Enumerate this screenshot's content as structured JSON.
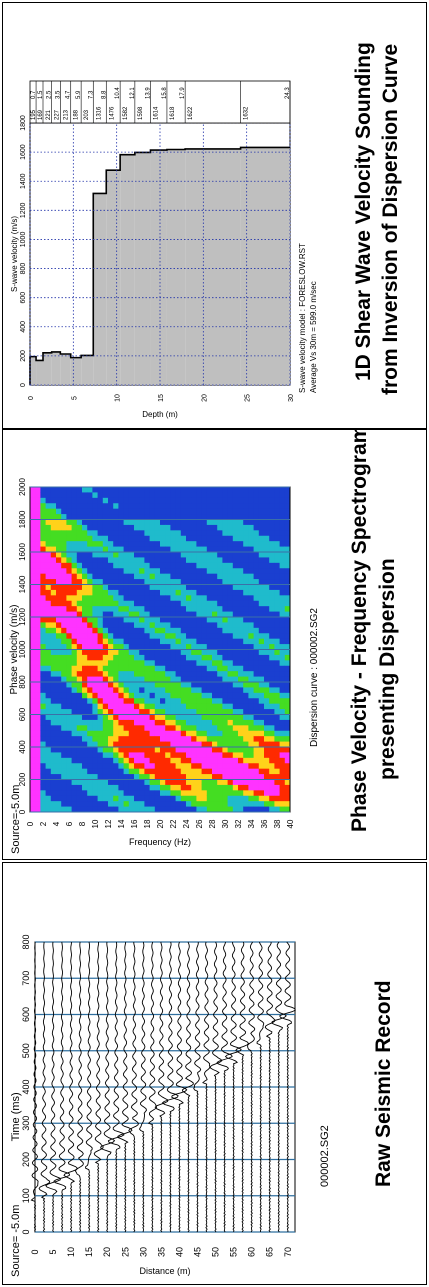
{
  "panel1": {
    "source_label": "Source= -5.0m",
    "file_label": "000002.SG2",
    "caption": "Raw Seismic Record"
  },
  "panel2": {
    "source_label": "Source=-5.0m",
    "file_label": "Dispersion curve : 000002.SG2",
    "caption_line1": "Phase Velocity - Frequency Spectrogram",
    "caption_line2": "presenting Dispersion"
  },
  "panel3": {
    "model_label": "S-wave velocity model : FORESLOW.RST",
    "avg_label": "Average Vs 30m = 599.0 m/sec",
    "caption_line1": "1D Shear Wave Velocity Sounding",
    "caption_line2": "from Inversion of Dispersion Curve"
  },
  "chart_data": [
    {
      "type": "line",
      "title": "",
      "xlabel": "Time (ms)",
      "ylabel": "Distance (m)",
      "xlim": [
        0,
        800
      ],
      "ylim": [
        0,
        72
      ],
      "x_ticks": [
        "0",
        "100",
        "200",
        "300",
        "400",
        "500",
        "600",
        "700",
        "800"
      ],
      "y_ticks": [
        "0",
        "5",
        "10",
        "15",
        "20",
        "25",
        "30",
        "35",
        "40",
        "45",
        "50",
        "55",
        "60",
        "65",
        "70"
      ],
      "traces_distance": [
        0,
        2.5,
        5,
        7.5,
        10,
        12.5,
        15,
        17.5,
        20,
        22.5,
        25,
        27.5,
        30,
        32.5,
        35,
        37.5,
        40,
        42.5,
        45,
        47.5,
        50,
        52.5,
        55,
        57.5,
        60,
        62.5,
        65,
        67.5,
        70
      ],
      "first_arrival_ms": [
        95,
        105,
        115,
        130,
        150,
        165,
        185,
        200,
        220,
        240,
        255,
        275,
        290,
        310,
        330,
        345,
        365,
        385,
        400,
        420,
        440,
        455,
        475,
        495,
        510,
        530,
        550,
        565,
        585
      ]
    },
    {
      "type": "heatmap",
      "title": "",
      "xlabel": "Phase velocity (m/s)",
      "ylabel": "Frequency (Hz)",
      "xlim": [
        0,
        2000
      ],
      "ylim": [
        0,
        40
      ],
      "x_ticks": [
        "0",
        "200",
        "400",
        "600",
        "800",
        "1000",
        "1200",
        "1400",
        "1600",
        "1800",
        "2000"
      ],
      "y_ticks": [
        "0",
        "2",
        "4",
        "6",
        "8",
        "10",
        "12",
        "14",
        "16",
        "18",
        "20",
        "22",
        "24",
        "26",
        "28",
        "30",
        "32",
        "34",
        "36",
        "38",
        "40"
      ],
      "dispersion_curve": {
        "frequency_hz": [
          4,
          6,
          8,
          10,
          12,
          14,
          16,
          18,
          20,
          22,
          24,
          26,
          28,
          30,
          32,
          34,
          36,
          38,
          40
        ],
        "phase_velocity_ms": [
          1400,
          1250,
          1050,
          900,
          700,
          560,
          470,
          420,
          380,
          350,
          320,
          300,
          280,
          265,
          250,
          240,
          230,
          225,
          220
        ]
      }
    },
    {
      "type": "bar",
      "title": "",
      "xlabel": "S-wave velocity (m/s)",
      "ylabel": "Depth (m)",
      "xlim": [
        0,
        1800
      ],
      "ylim": [
        0,
        30
      ],
      "x_ticks": [
        "0",
        "200",
        "400",
        "600",
        "800",
        "1000",
        "1200",
        "1400",
        "1600",
        "1800"
      ],
      "y_ticks": [
        "0",
        "5",
        "10",
        "15",
        "20",
        "25",
        "30"
      ],
      "layers": [
        {
          "vs": 195,
          "bottom": 0.7
        },
        {
          "vs": 169,
          "bottom": 1.5
        },
        {
          "vs": 221,
          "bottom": 2.5
        },
        {
          "vs": 227,
          "bottom": 3.5
        },
        {
          "vs": 213,
          "bottom": 4.7
        },
        {
          "vs": 188,
          "bottom": 5.9
        },
        {
          "vs": 203,
          "bottom": 7.3
        },
        {
          "vs": 1316,
          "bottom": 8.8
        },
        {
          "vs": 1476,
          "bottom": 10.4
        },
        {
          "vs": 1582,
          "bottom": 12.1
        },
        {
          "vs": 1598,
          "bottom": 13.9
        },
        {
          "vs": 1614,
          "bottom": 15.8
        },
        {
          "vs": 1618,
          "bottom": 17.9
        },
        {
          "vs": 1622,
          "bottom": 24.3
        },
        {
          "vs": 1632,
          "bottom": 30
        }
      ],
      "table_vs_labels": [
        "195",
        "169",
        "221",
        "227",
        "213",
        "188",
        "203",
        "1316",
        "1476",
        "1582",
        "1598",
        "1614",
        "1618",
        "1622",
        "1632"
      ],
      "table_depth_labels": [
        "0.7",
        "1.5",
        "2.5",
        "3.5",
        "4.7",
        "5.9",
        "7.3",
        "8.8",
        "10.4",
        "12.1",
        "13.9",
        "15.8",
        "17.9",
        "",
        "24.3",
        ""
      ]
    }
  ]
}
